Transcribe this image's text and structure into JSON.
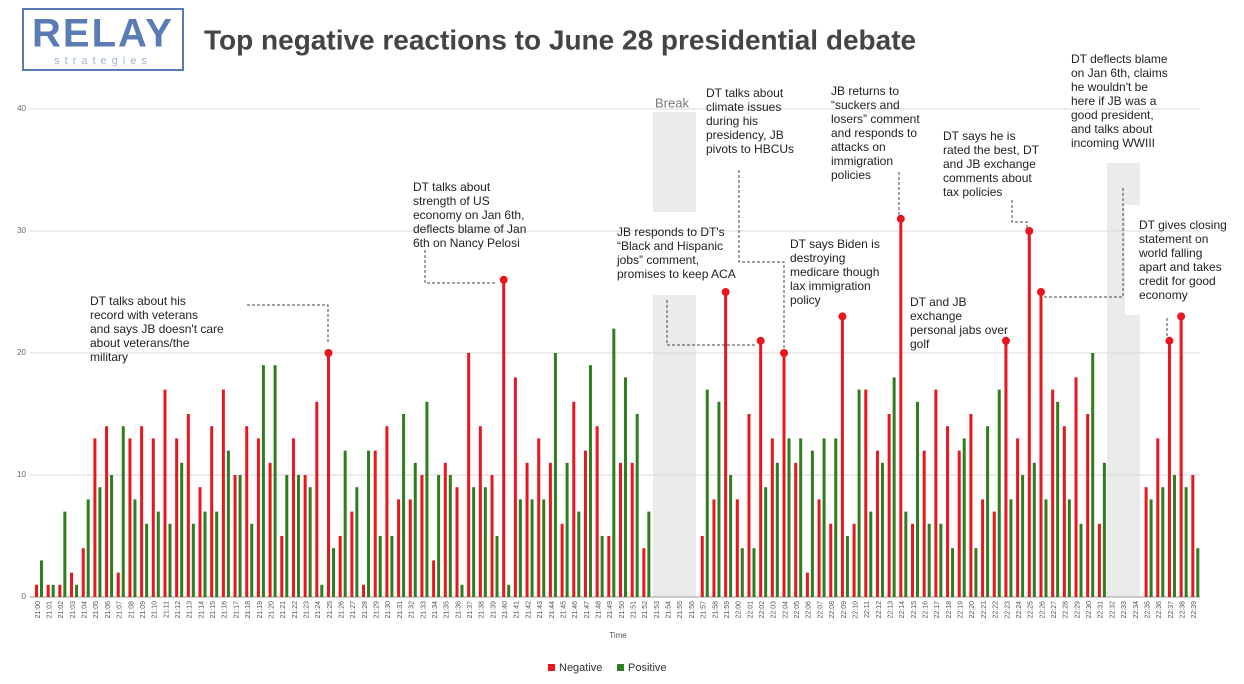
{
  "logo": {
    "name": "RELAY",
    "tagline": "strategies"
  },
  "chart_data": {
    "type": "bar",
    "title": "Top negative reactions to June 28 presidential debate",
    "x_label": "Time",
    "break_label": "Break",
    "categories": [
      "21:00",
      "21:01",
      "21:02",
      "21:03",
      "21:04",
      "21:05",
      "21:06",
      "21:07",
      "21:08",
      "21:09",
      "21:10",
      "21:11",
      "21:12",
      "21:13",
      "21:14",
      "21:15",
      "21:16",
      "21:17",
      "21:18",
      "21:19",
      "21:20",
      "21:21",
      "21:22",
      "21:23",
      "21:24",
      "21:25",
      "21:26",
      "21:27",
      "21:28",
      "21:29",
      "21:30",
      "21:31",
      "21:32",
      "21:33",
      "21:34",
      "21:35",
      "21:36",
      "21:37",
      "21:38",
      "21:39",
      "21:40",
      "21:41",
      "21:42",
      "21:43",
      "21:44",
      "21:45",
      "21:46",
      "21:47",
      "21:48",
      "21:49",
      "21:50",
      "21:51",
      "21:52",
      "21:53",
      "21:54",
      "21:55",
      "21:56",
      "21:57",
      "21:58",
      "21:59",
      "22:00",
      "22:01",
      "22:02",
      "22:03",
      "22:04",
      "22:05",
      "22:06",
      "22:07",
      "22:08",
      "22:09",
      "22:10",
      "22:11",
      "22:12",
      "22:13",
      "22:14",
      "22:15",
      "22:16",
      "22:17",
      "22:18",
      "22:19",
      "22:20",
      "22:21",
      "22:22",
      "22:23",
      "22:24",
      "22:25",
      "22:26",
      "22:27",
      "22:28",
      "22:29",
      "22:30",
      "22:31",
      "22:32",
      "22:33",
      "22:34",
      "22:35",
      "22:36",
      "22:37",
      "22:38",
      "22:39"
    ],
    "series": [
      {
        "name": "Negative",
        "color": "#e8171f",
        "values": [
          1,
          1,
          1,
          2,
          4,
          13,
          14,
          2,
          13,
          14,
          13,
          17,
          13,
          15,
          9,
          14,
          17,
          10,
          14,
          13,
          11,
          5,
          13,
          10,
          16,
          20,
          5,
          7,
          1,
          12,
          14,
          8,
          8,
          10,
          3,
          11,
          9,
          20,
          14,
          10,
          26,
          18,
          11,
          13,
          11,
          6,
          16,
          12,
          14,
          5,
          11,
          11,
          4,
          0,
          0,
          0,
          0,
          5,
          8,
          25,
          8,
          15,
          21,
          13,
          20,
          11,
          2,
          8,
          6,
          23,
          6,
          17,
          12,
          15,
          31,
          6,
          12,
          17,
          14,
          12,
          15,
          8,
          7,
          21,
          13,
          30,
          25,
          17,
          14,
          18,
          15,
          6,
          0,
          0,
          0,
          9,
          13,
          21,
          23,
          10
        ]
      },
      {
        "name": "Positive",
        "color": "#2e7d1e",
        "values": [
          3,
          1,
          7,
          1,
          8,
          9,
          10,
          14,
          8,
          6,
          7,
          6,
          11,
          6,
          7,
          7,
          12,
          10,
          6,
          19,
          19,
          10,
          10,
          9,
          1,
          4,
          12,
          9,
          12,
          5,
          5,
          15,
          11,
          16,
          10,
          10,
          1,
          9,
          9,
          5,
          1,
          8,
          8,
          8,
          20,
          11,
          7,
          19,
          5,
          22,
          18,
          15,
          7,
          0,
          0,
          0,
          0,
          17,
          16,
          10,
          4,
          4,
          9,
          11,
          13,
          13,
          12,
          13,
          13,
          5,
          17,
          7,
          11,
          18,
          7,
          16,
          6,
          6,
          4,
          13,
          4,
          14,
          17,
          8,
          10,
          11,
          8,
          16,
          8,
          6,
          20,
          11,
          0,
          0,
          0,
          8,
          9,
          10,
          9,
          4
        ]
      }
    ],
    "ylim": [
      0,
      40
    ],
    "yticks": [
      0,
      10,
      20,
      30,
      40
    ],
    "grid": true,
    "legend": "bottom",
    "annotations": [
      [
        "DT talks about his",
        "record with veterans",
        "and says JB doesn't care",
        "about veterans/the",
        "military"
      ],
      [
        "DT talks about",
        "strength of US",
        "economy on Jan 6th,",
        "deflects blame of Jan",
        "6th on Nancy Pelosi"
      ],
      [
        "JB responds to DT's",
        "“Black and Hispanic",
        "jobs” comment,",
        "promises to keep ACA"
      ],
      [
        "DT talks about",
        "climate issues",
        "during his",
        "presidency, JB",
        "pivots to HBCUs"
      ],
      [
        "DT says Biden is",
        "destroying",
        "medicare though",
        "lax immigration",
        "policy"
      ],
      [
        "JB returns to",
        "“suckers and",
        "losers” comment",
        "and responds to",
        "attacks on",
        "immigration",
        "policies"
      ],
      [
        "DT and JB",
        "exchange",
        "personal jabs over",
        "golf"
      ],
      [
        "DT says he is",
        "rated the best, DT",
        "and JB exchange",
        "comments about",
        "tax policies"
      ],
      [
        "DT deflects blame",
        "on Jan 6th, claims",
        "he wouldn't be",
        "here if JB was a",
        "good president,",
        "and talks about",
        "incoming WWIII"
      ],
      [
        "DT gives closing",
        "statement on",
        "world falling",
        "apart and takes",
        "credit for good",
        "economy"
      ]
    ]
  }
}
